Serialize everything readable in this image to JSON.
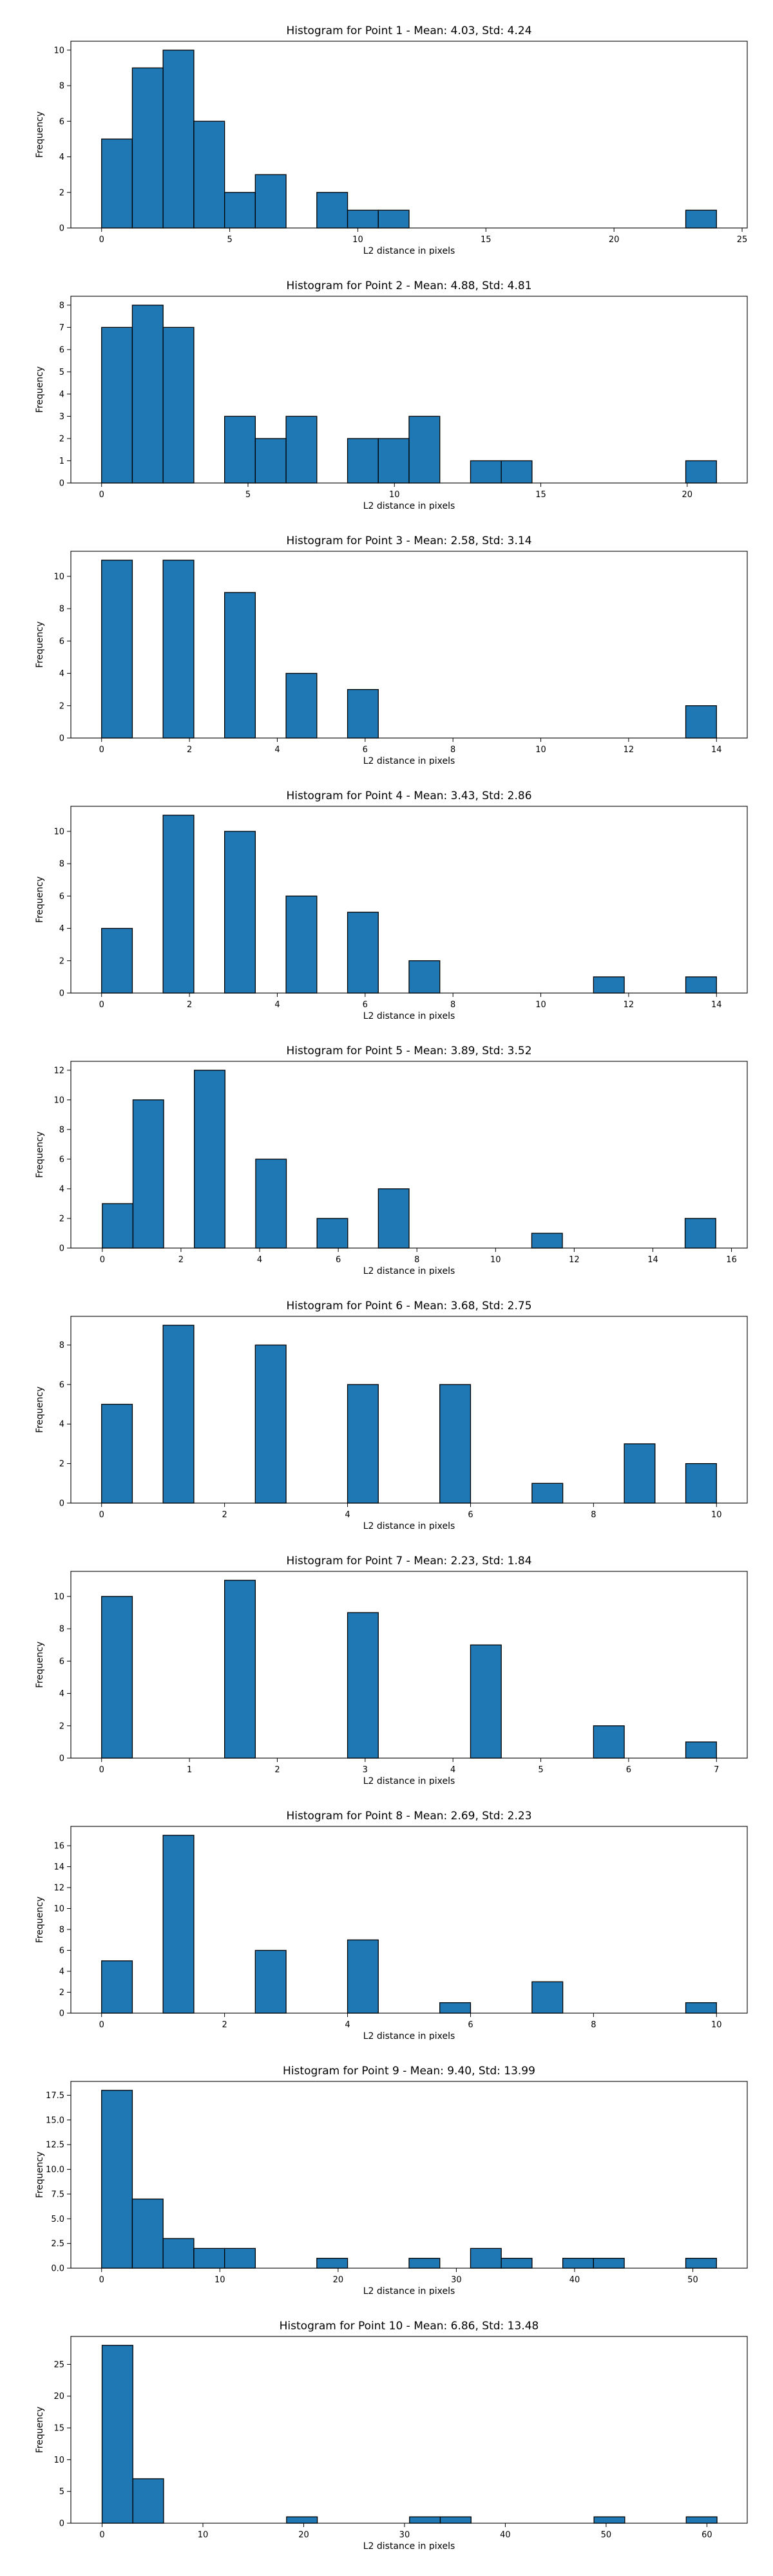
{
  "bar_color": "#1f77b4",
  "edge_color": "#000000",
  "chart_data": [
    {
      "type": "bar",
      "title": "Histogram for Point 1 - Mean: 4.03, Std: 4.24",
      "xlabel": "L2 distance in pixels",
      "ylabel": "Frequency",
      "xlim": [
        -1.2,
        25.2
      ],
      "ylim": [
        0,
        10.5
      ],
      "xticks": [
        0,
        5,
        10,
        15,
        20,
        25
      ],
      "yticks": [
        0,
        2,
        4,
        6,
        8,
        10
      ],
      "bin_edges": [
        0,
        1.2,
        2.4,
        3.6,
        4.8,
        6.0,
        7.2,
        8.4,
        9.6,
        10.8,
        12.0,
        13.2,
        14.4,
        15.6,
        16.8,
        18.0,
        19.2,
        20.4,
        21.6,
        22.8,
        24.0
      ],
      "counts": [
        5,
        9,
        10,
        6,
        2,
        3,
        0,
        2,
        1,
        1,
        0,
        0,
        0,
        0,
        0,
        0,
        0,
        0,
        0,
        1
      ]
    },
    {
      "type": "bar",
      "title": "Histogram for Point 2 - Mean: 4.88, Std: 4.81",
      "xlabel": "L2 distance in pixels",
      "ylabel": "Frequency",
      "xlim": [
        -1.05,
        22.05
      ],
      "ylim": [
        0,
        8.4
      ],
      "xticks": [
        0,
        5,
        10,
        15,
        20
      ],
      "yticks": [
        0,
        1,
        2,
        3,
        4,
        5,
        6,
        7,
        8
      ],
      "bin_edges": [
        0,
        1.05,
        2.1,
        3.15,
        4.2,
        5.25,
        6.3,
        7.35,
        8.4,
        9.45,
        10.5,
        11.55,
        12.6,
        13.65,
        14.7,
        15.75,
        16.8,
        17.85,
        18.9,
        19.95,
        21.0
      ],
      "counts": [
        7,
        8,
        7,
        0,
        3,
        2,
        3,
        0,
        2,
        2,
        3,
        0,
        1,
        1,
        0,
        0,
        0,
        0,
        0,
        1
      ]
    },
    {
      "type": "bar",
      "title": "Histogram for Point 3 - Mean: 2.58, Std: 3.14",
      "xlabel": "L2 distance in pixels",
      "ylabel": "Frequency",
      "xlim": [
        -0.7,
        14.7
      ],
      "ylim": [
        0,
        11.55
      ],
      "xticks": [
        0,
        2,
        4,
        6,
        8,
        10,
        12,
        14
      ],
      "yticks": [
        0,
        2,
        4,
        6,
        8,
        10
      ],
      "bin_edges": [
        0,
        0.7,
        1.4,
        2.1,
        2.8,
        3.5,
        4.2,
        4.9,
        5.6,
        6.3,
        7.0,
        7.7,
        8.4,
        9.1,
        9.8,
        10.5,
        11.2,
        11.9,
        12.6,
        13.3,
        14.0
      ],
      "counts": [
        11,
        0,
        11,
        0,
        9,
        0,
        4,
        0,
        3,
        0,
        0,
        0,
        0,
        0,
        0,
        0,
        0,
        0,
        0,
        2
      ]
    },
    {
      "type": "bar",
      "title": "Histogram for Point 4 - Mean: 3.43, Std: 2.86",
      "xlabel": "L2 distance in pixels",
      "ylabel": "Frequency",
      "xlim": [
        -0.7,
        14.7
      ],
      "ylim": [
        0,
        11.55
      ],
      "xticks": [
        0,
        2,
        4,
        6,
        8,
        10,
        12,
        14
      ],
      "yticks": [
        0,
        2,
        4,
        6,
        8,
        10
      ],
      "bin_edges": [
        0,
        0.7,
        1.4,
        2.1,
        2.8,
        3.5,
        4.2,
        4.9,
        5.6,
        6.3,
        7.0,
        7.7,
        8.4,
        9.1,
        9.8,
        10.5,
        11.2,
        11.9,
        12.6,
        13.3,
        14.0
      ],
      "counts": [
        4,
        0,
        11,
        0,
        10,
        0,
        6,
        0,
        5,
        0,
        2,
        0,
        0,
        0,
        0,
        0,
        1,
        0,
        0,
        1
      ]
    },
    {
      "type": "bar",
      "title": "Histogram for Point 5 - Mean: 3.89, Std: 3.52",
      "xlabel": "L2 distance in pixels",
      "ylabel": "Frequency",
      "xlim": [
        -0.8,
        16.4
      ],
      "ylim": [
        0,
        12.6
      ],
      "xticks": [
        0,
        2,
        4,
        6,
        8,
        10,
        12,
        14,
        16
      ],
      "yticks": [
        0,
        2,
        4,
        6,
        8,
        10,
        12
      ],
      "bin_edges": [
        0,
        0.78,
        1.56,
        2.34,
        3.12,
        3.9,
        4.68,
        5.46,
        6.24,
        7.02,
        7.8,
        8.58,
        9.36,
        10.14,
        10.92,
        11.7,
        12.48,
        13.26,
        14.04,
        14.82,
        15.6
      ],
      "counts": [
        3,
        10,
        0,
        12,
        0,
        6,
        0,
        2,
        0,
        4,
        0,
        0,
        0,
        0,
        1,
        0,
        0,
        0,
        0,
        2
      ]
    },
    {
      "type": "bar",
      "title": "Histogram for Point 6 - Mean: 3.68, Std: 2.75",
      "xlabel": "L2 distance in pixels",
      "ylabel": "Frequency",
      "xlim": [
        -0.5,
        10.5
      ],
      "ylim": [
        0,
        9.45
      ],
      "xticks": [
        0,
        2,
        4,
        6,
        8,
        10
      ],
      "yticks": [
        0,
        2,
        4,
        6,
        8
      ],
      "bin_edges": [
        0,
        0.5,
        1.0,
        1.5,
        2.0,
        2.5,
        3.0,
        3.5,
        4.0,
        4.5,
        5.0,
        5.5,
        6.0,
        6.5,
        7.0,
        7.5,
        8.0,
        8.5,
        9.0,
        9.5,
        10.0
      ],
      "counts": [
        5,
        0,
        9,
        0,
        0,
        8,
        0,
        0,
        6,
        0,
        0,
        6,
        0,
        0,
        1,
        0,
        0,
        3,
        0,
        2
      ]
    },
    {
      "type": "bar",
      "title": "Histogram for Point 7 - Mean: 2.23, Std: 1.84",
      "xlabel": "L2 distance in pixels",
      "ylabel": "Frequency",
      "xlim": [
        -0.35,
        7.35
      ],
      "ylim": [
        0,
        11.55
      ],
      "xticks": [
        0,
        1,
        2,
        3,
        4,
        5,
        6,
        7
      ],
      "yticks": [
        0,
        2,
        4,
        6,
        8,
        10
      ],
      "bin_edges": [
        0,
        0.35,
        0.7,
        1.05,
        1.4,
        1.75,
        2.1,
        2.45,
        2.8,
        3.15,
        3.5,
        3.85,
        4.2,
        4.55,
        4.9,
        5.25,
        5.6,
        5.95,
        6.3,
        6.65,
        7.0
      ],
      "counts": [
        10,
        0,
        0,
        0,
        11,
        0,
        0,
        0,
        9,
        0,
        0,
        0,
        7,
        0,
        0,
        0,
        2,
        0,
        0,
        1
      ]
    },
    {
      "type": "bar",
      "title": "Histogram for Point 8 - Mean: 2.69, Std: 2.23",
      "xlabel": "L2 distance in pixels",
      "ylabel": "Frequency",
      "xlim": [
        -0.5,
        10.5
      ],
      "ylim": [
        0,
        17.85
      ],
      "xticks": [
        0,
        2,
        4,
        6,
        8,
        10
      ],
      "yticks": [
        0,
        2,
        4,
        6,
        8,
        10,
        12,
        14,
        16
      ],
      "bin_edges": [
        0,
        0.5,
        1.0,
        1.5,
        2.0,
        2.5,
        3.0,
        3.5,
        4.0,
        4.5,
        5.0,
        5.5,
        6.0,
        6.5,
        7.0,
        7.5,
        8.0,
        8.5,
        9.0,
        9.5,
        10.0
      ],
      "counts": [
        5,
        0,
        17,
        0,
        0,
        6,
        0,
        0,
        7,
        0,
        0,
        1,
        0,
        0,
        3,
        0,
        0,
        0,
        0,
        1
      ]
    },
    {
      "type": "bar",
      "title": "Histogram for Point 9 - Mean: 9.40, Std: 13.99",
      "xlabel": "L2 distance in pixels",
      "ylabel": "Frequency",
      "xlim": [
        -2.6,
        54.6
      ],
      "ylim": [
        0,
        18.9
      ],
      "xticks": [
        0,
        10,
        20,
        30,
        40,
        50
      ],
      "yticks": [
        "0.0",
        "2.5",
        "5.0",
        "7.5",
        "10.0",
        "12.5",
        "15.0",
        "17.5"
      ],
      "bin_edges": [
        0,
        2.6,
        5.2,
        7.8,
        10.4,
        13.0,
        15.6,
        18.2,
        20.8,
        23.4,
        26.0,
        28.6,
        31.2,
        33.8,
        36.4,
        39.0,
        41.6,
        44.2,
        46.8,
        49.4,
        52.0
      ],
      "counts": [
        18,
        7,
        3,
        2,
        2,
        0,
        0,
        1,
        0,
        0,
        1,
        0,
        2,
        1,
        0,
        1,
        1,
        0,
        0,
        1
      ]
    },
    {
      "type": "bar",
      "title": "Histogram for Point 10 - Mean: 6.86, Std: 13.48",
      "xlabel": "L2 distance in pixels",
      "ylabel": "Frequency",
      "xlim": [
        -3.1,
        64.0
      ],
      "ylim": [
        0,
        29.4
      ],
      "xticks": [
        0,
        10,
        20,
        30,
        40,
        50,
        60
      ],
      "yticks": [
        0,
        5,
        10,
        15,
        20,
        25
      ],
      "bin_edges": [
        0,
        3.05,
        6.1,
        9.15,
        12.2,
        15.25,
        18.3,
        21.35,
        24.4,
        27.45,
        30.5,
        33.55,
        36.6,
        39.65,
        42.7,
        45.75,
        48.8,
        51.85,
        54.9,
        57.95,
        61.0
      ],
      "counts": [
        28,
        7,
        0,
        0,
        0,
        0,
        1,
        0,
        0,
        0,
        1,
        1,
        0,
        0,
        0,
        0,
        1,
        0,
        0,
        1
      ]
    }
  ]
}
